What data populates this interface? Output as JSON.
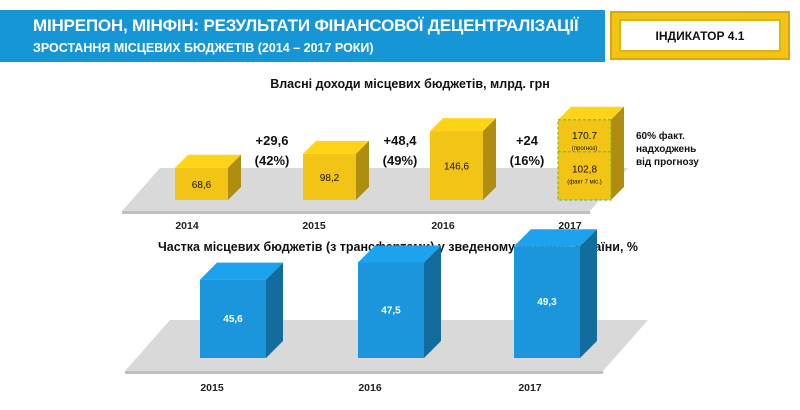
{
  "header": {
    "title": "МІНРЕПОН, МІНФІН: РЕЗУЛЬТАТИ ФІНАНСОВОЇ ДЕЦЕНТРАЛІЗАЦІЇ",
    "subtitle": "ЗРОСТАННЯ МІСЦЕВИХ БЮДЖЕТІВ (2014 – 2017 РОКИ)",
    "indicator": "ІНДИКАТОР 4.1"
  },
  "colors": {
    "header_blue": "#1796d5",
    "bar_yellow": "#f2c416",
    "bar_blue": "#1b96dc",
    "platform_gray": "#d9d9d9"
  },
  "chart_data": [
    {
      "type": "bar",
      "title": "Власні доходи місцевих бюджетів, млрд. грн",
      "categories": [
        "2014",
        "2015",
        "2016",
        "2017"
      ],
      "values": [
        68.6,
        98.2,
        146.6,
        170.7
      ],
      "value_labels": [
        "68,6",
        "98,2",
        "146,6",
        "170.7"
      ],
      "ylim": [
        0,
        180
      ],
      "growth_labels": [
        {
          "value": "+29,6",
          "percent": "(42%)"
        },
        {
          "value": "+48,4",
          "percent": "(49%)"
        },
        {
          "value": "+24",
          "percent": "(16%)"
        }
      ],
      "forecast": {
        "value": 170.7,
        "label": "170.7",
        "note": "(прогноз)"
      },
      "actual_2017": {
        "value": 102.8,
        "label": "102,8",
        "note": "(факт 7 міс.)"
      },
      "annotation": [
        "60% факт.",
        "надходжень",
        "від прогнозу"
      ]
    },
    {
      "type": "bar",
      "title": "Частка місцевих бюджетів (з трансфертами) у зведеному бюджеті України, %",
      "categories": [
        "2015",
        "2016",
        "2017"
      ],
      "values": [
        45.6,
        47.5,
        49.3
      ],
      "value_labels": [
        "45,6",
        "47,5",
        "49,3"
      ],
      "ylim": [
        40,
        50
      ]
    }
  ]
}
